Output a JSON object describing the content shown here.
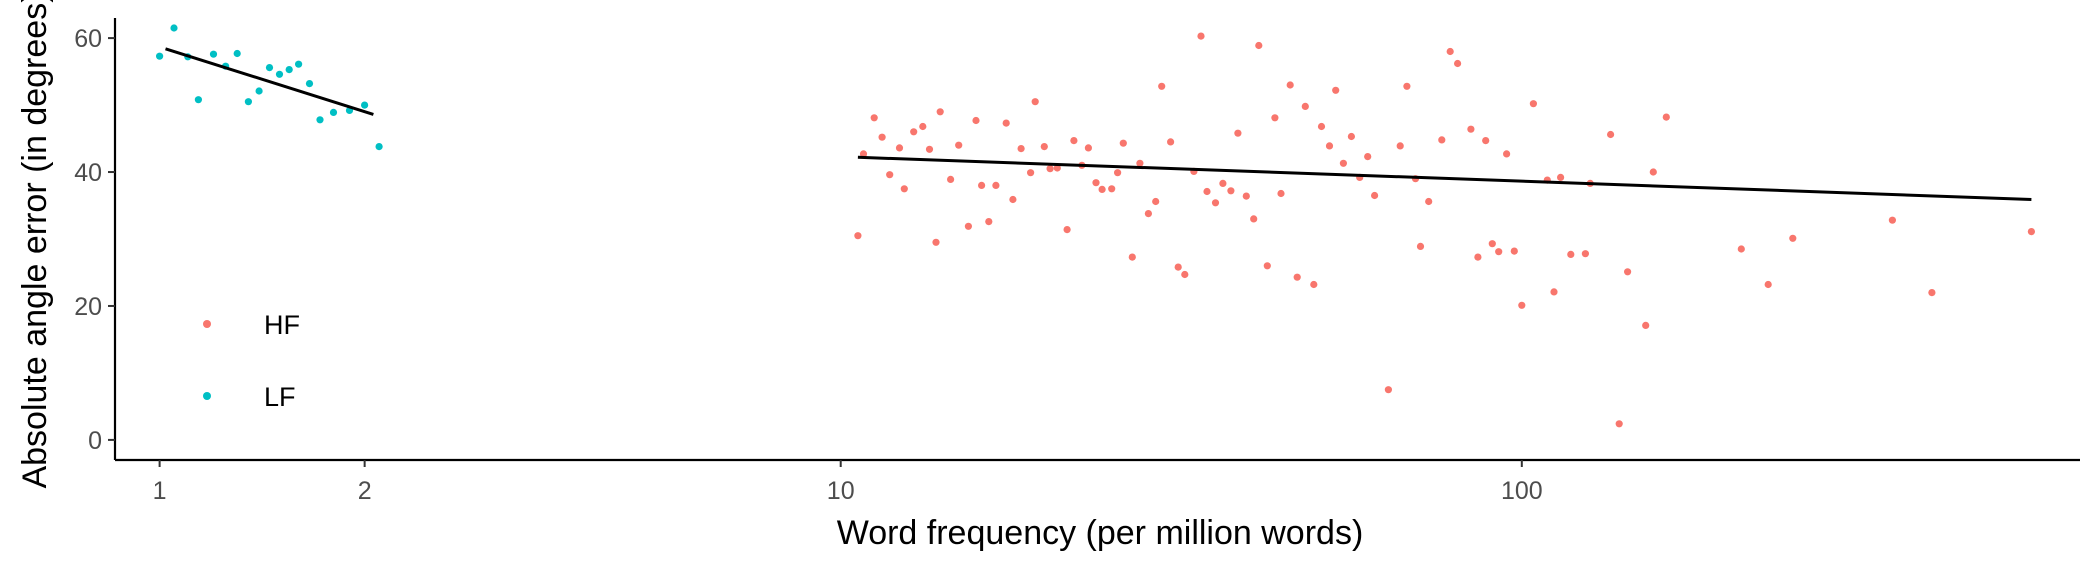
{
  "chart_data": {
    "type": "scatter",
    "x_scale": "log10",
    "xlabel": "Word frequency (per million words)",
    "ylabel": "Absolute angle error (in degrees)",
    "xlim": [
      0.86,
      660
    ],
    "ylim": [
      -3,
      63
    ],
    "x_ticks": [
      {
        "value": 1,
        "label": "1"
      },
      {
        "value": 2,
        "label": "2"
      },
      {
        "value": 10,
        "label": "10"
      },
      {
        "value": 100,
        "label": "100"
      }
    ],
    "y_ticks": [
      {
        "value": 0,
        "label": "0"
      },
      {
        "value": 20,
        "label": "20"
      },
      {
        "value": 40,
        "label": "40"
      },
      {
        "value": 60,
        "label": "60"
      }
    ],
    "grid": false,
    "legend": {
      "position": "left-inside"
    },
    "colors": {
      "HF": "#F8766D",
      "LF": "#00BFC4",
      "fit": "#000000"
    },
    "series": [
      {
        "name": "HF",
        "color": "#F8766D",
        "points": [
          [
            10.6,
            30.5
          ],
          [
            10.8,
            42.7
          ],
          [
            11.2,
            48.1
          ],
          [
            11.5,
            45.2
          ],
          [
            11.8,
            39.6
          ],
          [
            12.2,
            43.6
          ],
          [
            12.4,
            37.5
          ],
          [
            12.8,
            46.0
          ],
          [
            13.2,
            46.8
          ],
          [
            13.5,
            43.4
          ],
          [
            13.8,
            29.5
          ],
          [
            14.0,
            49.0
          ],
          [
            14.5,
            38.9
          ],
          [
            14.9,
            44.0
          ],
          [
            15.4,
            31.9
          ],
          [
            15.8,
            47.7
          ],
          [
            16.1,
            38.0
          ],
          [
            16.5,
            32.6
          ],
          [
            16.9,
            38.0
          ],
          [
            17.5,
            47.3
          ],
          [
            17.9,
            35.9
          ],
          [
            18.4,
            43.5
          ],
          [
            19.0,
            39.9
          ],
          [
            19.3,
            50.5
          ],
          [
            19.9,
            43.8
          ],
          [
            20.3,
            40.5
          ],
          [
            20.8,
            40.6
          ],
          [
            21.5,
            31.4
          ],
          [
            22.0,
            44.7
          ],
          [
            22.6,
            41.0
          ],
          [
            23.1,
            43.6
          ],
          [
            23.7,
            38.4
          ],
          [
            24.2,
            37.4
          ],
          [
            25.0,
            37.5
          ],
          [
            25.5,
            39.9
          ],
          [
            26.0,
            44.3
          ],
          [
            26.8,
            27.3
          ],
          [
            27.5,
            41.3
          ],
          [
            28.3,
            33.8
          ],
          [
            29.0,
            35.6
          ],
          [
            29.6,
            52.8
          ],
          [
            30.5,
            44.5
          ],
          [
            31.3,
            25.8
          ],
          [
            32.0,
            24.7
          ],
          [
            33.0,
            40.1
          ],
          [
            33.8,
            60.3
          ],
          [
            34.5,
            37.1
          ],
          [
            35.5,
            35.4
          ],
          [
            36.4,
            38.3
          ],
          [
            37.4,
            37.2
          ],
          [
            38.3,
            45.8
          ],
          [
            39.4,
            36.4
          ],
          [
            40.4,
            33.0
          ],
          [
            41.1,
            58.9
          ],
          [
            42.3,
            26.0
          ],
          [
            43.4,
            48.1
          ],
          [
            44.3,
            36.8
          ],
          [
            45.7,
            53.0
          ],
          [
            46.8,
            24.3
          ],
          [
            48.1,
            49.8
          ],
          [
            49.5,
            23.2
          ],
          [
            50.8,
            46.8
          ],
          [
            52.2,
            43.9
          ],
          [
            53.3,
            52.2
          ],
          [
            54.7,
            41.3
          ],
          [
            56.2,
            45.3
          ],
          [
            57.8,
            39.2
          ],
          [
            59.4,
            42.3
          ],
          [
            60.8,
            36.5
          ],
          [
            63.7,
            7.5
          ],
          [
            66.3,
            43.9
          ],
          [
            67.8,
            52.8
          ],
          [
            69.8,
            39.0
          ],
          [
            71.0,
            28.9
          ],
          [
            73.0,
            35.6
          ],
          [
            76.3,
            44.8
          ],
          [
            78.5,
            58.0
          ],
          [
            80.5,
            56.2
          ],
          [
            84.2,
            46.4
          ],
          [
            86.2,
            27.3
          ],
          [
            88.5,
            44.7
          ],
          [
            90.5,
            29.3
          ],
          [
            92.5,
            28.1
          ],
          [
            95.0,
            42.7
          ],
          [
            97.5,
            28.2
          ],
          [
            100.0,
            20.1
          ],
          [
            104.0,
            50.2
          ],
          [
            109.0,
            38.8
          ],
          [
            111.5,
            22.1
          ],
          [
            114.0,
            39.2
          ],
          [
            118.0,
            27.7
          ],
          [
            124.0,
            27.8
          ],
          [
            126.0,
            38.3
          ],
          [
            135.0,
            45.6
          ],
          [
            139.0,
            2.4
          ],
          [
            143.0,
            25.1
          ],
          [
            152.0,
            17.1
          ],
          [
            156.0,
            40.0
          ],
          [
            163.0,
            48.2
          ],
          [
            210.0,
            28.5
          ],
          [
            230.0,
            23.2
          ],
          [
            250.0,
            30.1
          ],
          [
            350.0,
            32.8
          ],
          [
            400.0,
            22.0
          ],
          [
            560.0,
            31.1
          ]
        ]
      },
      {
        "name": "LF",
        "color": "#00BFC4",
        "points": [
          [
            1.0,
            57.3
          ],
          [
            1.05,
            61.5
          ],
          [
            1.1,
            57.2
          ],
          [
            1.14,
            50.8
          ],
          [
            1.2,
            57.6
          ],
          [
            1.25,
            55.8
          ],
          [
            1.3,
            57.7
          ],
          [
            1.35,
            50.5
          ],
          [
            1.4,
            52.1
          ],
          [
            1.45,
            55.6
          ],
          [
            1.5,
            54.6
          ],
          [
            1.55,
            55.3
          ],
          [
            1.6,
            56.1
          ],
          [
            1.66,
            53.2
          ],
          [
            1.72,
            47.8
          ],
          [
            1.8,
            48.9
          ],
          [
            1.9,
            49.2
          ],
          [
            2.0,
            50.0
          ],
          [
            2.1,
            43.8
          ]
        ]
      }
    ],
    "fit_lines": [
      {
        "series": "LF",
        "from": [
          1.02,
          58.4
        ],
        "to": [
          2.06,
          48.6
        ]
      },
      {
        "series": "HF",
        "from": [
          10.6,
          42.2
        ],
        "to": [
          560.0,
          35.9
        ]
      }
    ]
  }
}
